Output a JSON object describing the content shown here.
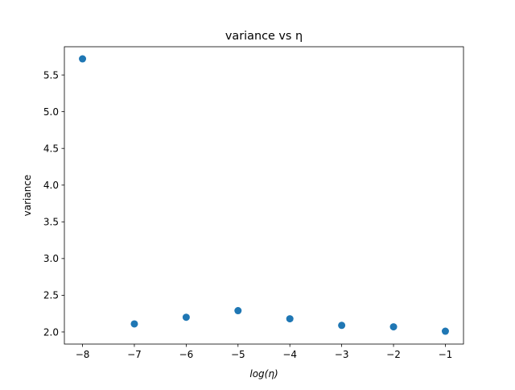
{
  "chart_data": {
    "type": "scatter",
    "title": "variance vs η",
    "xlabel": "log(η)",
    "ylabel": "variance",
    "xlim": [
      -8.35,
      -0.65
    ],
    "ylim": [
      1.835,
      5.885
    ],
    "xticks": [
      -8,
      -7,
      -6,
      -5,
      -4,
      -3,
      -2,
      -1
    ],
    "xtick_labels": [
      "−8",
      "−7",
      "−6",
      "−5",
      "−4",
      "−3",
      "−2",
      "−1"
    ],
    "yticks": [
      2.0,
      2.5,
      3.0,
      3.5,
      4.0,
      4.5,
      5.0,
      5.5
    ],
    "ytick_labels": [
      "2.0",
      "2.5",
      "3.0",
      "3.5",
      "4.0",
      "4.5",
      "5.0",
      "5.5"
    ],
    "grid": false,
    "series": [
      {
        "color": "#1f77b4",
        "points": [
          {
            "x": -8,
            "y": 5.72
          },
          {
            "x": -7,
            "y": 2.11
          },
          {
            "x": -6,
            "y": 2.2
          },
          {
            "x": -5,
            "y": 2.29
          },
          {
            "x": -4,
            "y": 2.18
          },
          {
            "x": -3,
            "y": 2.09
          },
          {
            "x": -2,
            "y": 2.07
          },
          {
            "x": -1,
            "y": 2.01
          }
        ]
      }
    ]
  }
}
